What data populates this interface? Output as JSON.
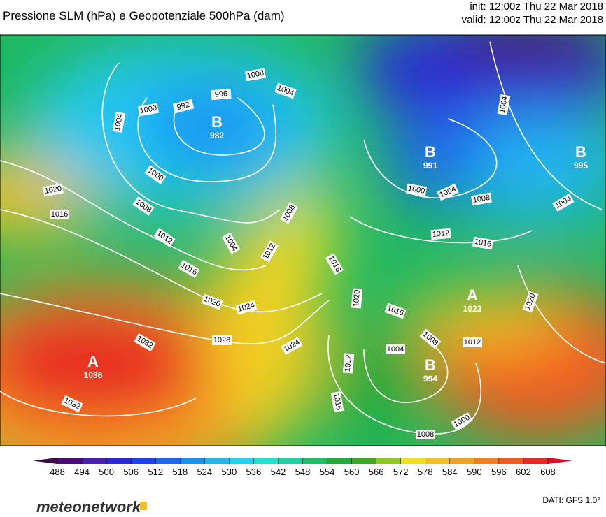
{
  "header": {
    "title": "Pressione SLM (hPa) e Geopotenziale 500hPa (dam)",
    "init": "init: 12:00z Thu 22 Mar 2018",
    "valid": "valid: 12:00z Thu 22 Mar 2018"
  },
  "centers": [
    {
      "letter": "B",
      "value": 982
    },
    {
      "letter": "B",
      "value": 991
    },
    {
      "letter": "B",
      "value": 995
    },
    {
      "letter": "A",
      "value": 1023
    },
    {
      "letter": "A",
      "value": 1036
    },
    {
      "letter": "B",
      "value": 994
    }
  ],
  "isobar_labels": [
    1008,
    1004,
    996,
    992,
    1000,
    1004,
    1000,
    1020,
    1016,
    1008,
    1012,
    1004,
    1016,
    1012,
    1008,
    1020,
    1024,
    1028,
    1032,
    1032,
    1016,
    1020,
    1016,
    1024,
    1012,
    1016,
    1004,
    1008,
    1012,
    1000,
    1008,
    1000,
    1004,
    1008,
    1012,
    1016,
    1004,
    1004,
    1020
  ],
  "colorbar": {
    "ticks": [
      488,
      494,
      500,
      506,
      512,
      518,
      524,
      530,
      536,
      542,
      548,
      554,
      560,
      566,
      572,
      578,
      584,
      590,
      596,
      602,
      608
    ],
    "colors": [
      "#3a0848",
      "#4c0c78",
      "#4a20b0",
      "#2a28d8",
      "#1c40ee",
      "#1a68f2",
      "#1a90f2",
      "#20b4f0",
      "#20d2ec",
      "#20e0d0",
      "#20d0a0",
      "#20bc68",
      "#20a838",
      "#40a820",
      "#90c820",
      "#f2e020",
      "#f2c020",
      "#f2a020",
      "#f28020",
      "#f25a20",
      "#e82a20",
      "#c81828"
    ]
  },
  "footer": {
    "logo": "meteonetwork",
    "source": "DATI: GFS 1.0°"
  }
}
